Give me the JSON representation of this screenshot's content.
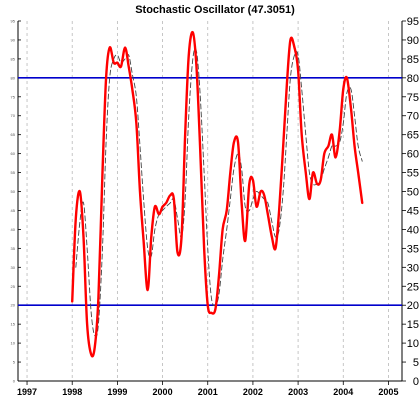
{
  "chart_data": {
    "type": "line",
    "title": "Stochastic Oscillator (47.3051)",
    "xlabel": "",
    "ylabel": "",
    "ylim": [
      0,
      95
    ],
    "xlim": [
      1996.8,
      2005.3
    ],
    "y_ticks": [
      0,
      5,
      10,
      15,
      20,
      25,
      30,
      35,
      40,
      45,
      50,
      55,
      60,
      65,
      70,
      75,
      80,
      85,
      90,
      95
    ],
    "x_ticks": [
      "1997",
      "1998",
      "1999",
      "2000",
      "2001",
      "2002",
      "2003",
      "2004",
      "2005"
    ],
    "x_tick_values": [
      1997,
      1998,
      1999,
      2000,
      2001,
      2002,
      2003,
      2004,
      2005
    ],
    "grid": "vertical dashed at years",
    "reference_lines": [
      {
        "value": 80,
        "color": "#0000cc"
      },
      {
        "value": 20,
        "color": "#0000cc"
      }
    ],
    "series": [
      {
        "style": "solid",
        "color": "#ff0000",
        "points": [
          [
            1998.0,
            21
          ],
          [
            1998.08,
            43
          ],
          [
            1998.17,
            50
          ],
          [
            1998.25,
            38
          ],
          [
            1998.33,
            15
          ],
          [
            1998.42,
            7
          ],
          [
            1998.5,
            9
          ],
          [
            1998.58,
            22
          ],
          [
            1998.67,
            55
          ],
          [
            1998.75,
            80
          ],
          [
            1998.83,
            88
          ],
          [
            1998.92,
            84
          ],
          [
            1999.0,
            84
          ],
          [
            1999.08,
            83
          ],
          [
            1999.17,
            88
          ],
          [
            1999.25,
            83
          ],
          [
            1999.33,
            77
          ],
          [
            1999.42,
            68
          ],
          [
            1999.5,
            50
          ],
          [
            1999.58,
            37
          ],
          [
            1999.67,
            24
          ],
          [
            1999.75,
            38
          ],
          [
            1999.83,
            46
          ],
          [
            1999.92,
            44
          ],
          [
            2000.0,
            46
          ],
          [
            2000.08,
            47
          ],
          [
            2000.17,
            49
          ],
          [
            2000.25,
            48
          ],
          [
            2000.33,
            34
          ],
          [
            2000.42,
            38
          ],
          [
            2000.5,
            65
          ],
          [
            2000.58,
            86
          ],
          [
            2000.67,
            92
          ],
          [
            2000.75,
            83
          ],
          [
            2000.83,
            62
          ],
          [
            2000.92,
            35
          ],
          [
            2001.0,
            20
          ],
          [
            2001.08,
            18
          ],
          [
            2001.17,
            19
          ],
          [
            2001.25,
            28
          ],
          [
            2001.33,
            40
          ],
          [
            2001.42,
            45
          ],
          [
            2001.5,
            55
          ],
          [
            2001.58,
            63
          ],
          [
            2001.67,
            63
          ],
          [
            2001.75,
            47
          ],
          [
            2001.83,
            37
          ],
          [
            2001.92,
            52
          ],
          [
            2002.0,
            53
          ],
          [
            2002.08,
            46
          ],
          [
            2002.17,
            50
          ],
          [
            2002.25,
            49
          ],
          [
            2002.33,
            44
          ],
          [
            2002.42,
            38
          ],
          [
            2002.5,
            35
          ],
          [
            2002.58,
            45
          ],
          [
            2002.67,
            62
          ],
          [
            2002.75,
            78
          ],
          [
            2002.83,
            90
          ],
          [
            2002.92,
            88
          ],
          [
            2003.0,
            82
          ],
          [
            2003.08,
            65
          ],
          [
            2003.17,
            55
          ],
          [
            2003.25,
            48
          ],
          [
            2003.33,
            55
          ],
          [
            2003.42,
            52
          ],
          [
            2003.5,
            53
          ],
          [
            2003.58,
            60
          ],
          [
            2003.67,
            62
          ],
          [
            2003.75,
            65
          ],
          [
            2003.83,
            59
          ],
          [
            2003.92,
            66
          ],
          [
            2004.0,
            77
          ],
          [
            2004.08,
            80
          ],
          [
            2004.17,
            72
          ],
          [
            2004.25,
            62
          ],
          [
            2004.33,
            55
          ],
          [
            2004.42,
            47
          ]
        ]
      },
      {
        "style": "dashed",
        "color": "#444444",
        "points": [
          [
            1998.08,
            30
          ],
          [
            1998.17,
            42
          ],
          [
            1998.25,
            47
          ],
          [
            1998.33,
            35
          ],
          [
            1998.42,
            18
          ],
          [
            1998.5,
            12
          ],
          [
            1998.58,
            15
          ],
          [
            1998.67,
            35
          ],
          [
            1998.75,
            63
          ],
          [
            1998.83,
            80
          ],
          [
            1998.92,
            85
          ],
          [
            1999.0,
            86
          ],
          [
            1999.08,
            84
          ],
          [
            1999.17,
            85
          ],
          [
            1999.25,
            86
          ],
          [
            1999.33,
            81
          ],
          [
            1999.42,
            75
          ],
          [
            1999.5,
            62
          ],
          [
            1999.58,
            48
          ],
          [
            1999.67,
            35
          ],
          [
            1999.75,
            33
          ],
          [
            1999.83,
            40
          ],
          [
            1999.92,
            44
          ],
          [
            2000.0,
            45
          ],
          [
            2000.08,
            46
          ],
          [
            2000.17,
            47
          ],
          [
            2000.25,
            48
          ],
          [
            2000.33,
            43
          ],
          [
            2000.42,
            38
          ],
          [
            2000.5,
            48
          ],
          [
            2000.58,
            70
          ],
          [
            2000.67,
            85
          ],
          [
            2000.75,
            87
          ],
          [
            2000.83,
            76
          ],
          [
            2000.92,
            55
          ],
          [
            2001.0,
            35
          ],
          [
            2001.08,
            22
          ],
          [
            2001.17,
            20
          ],
          [
            2001.25,
            23
          ],
          [
            2001.33,
            32
          ],
          [
            2001.42,
            40
          ],
          [
            2001.5,
            48
          ],
          [
            2001.58,
            56
          ],
          [
            2001.67,
            60
          ],
          [
            2001.75,
            56
          ],
          [
            2001.83,
            46
          ],
          [
            2001.92,
            45
          ],
          [
            2002.0,
            48
          ],
          [
            2002.08,
            50
          ],
          [
            2002.17,
            49
          ],
          [
            2002.25,
            48
          ],
          [
            2002.33,
            47
          ],
          [
            2002.42,
            42
          ],
          [
            2002.5,
            38
          ],
          [
            2002.58,
            40
          ],
          [
            2002.67,
            50
          ],
          [
            2002.75,
            65
          ],
          [
            2002.83,
            80
          ],
          [
            2002.92,
            86
          ],
          [
            2003.0,
            86
          ],
          [
            2003.08,
            77
          ],
          [
            2003.17,
            65
          ],
          [
            2003.25,
            55
          ],
          [
            2003.33,
            52
          ],
          [
            2003.42,
            52
          ],
          [
            2003.5,
            53
          ],
          [
            2003.58,
            56
          ],
          [
            2003.67,
            59
          ],
          [
            2003.75,
            62
          ],
          [
            2003.83,
            62
          ],
          [
            2003.92,
            63
          ],
          [
            2004.0,
            68
          ],
          [
            2004.08,
            76
          ],
          [
            2004.17,
            77
          ],
          [
            2004.25,
            70
          ],
          [
            2004.33,
            62
          ],
          [
            2004.42,
            58
          ]
        ]
      }
    ]
  }
}
